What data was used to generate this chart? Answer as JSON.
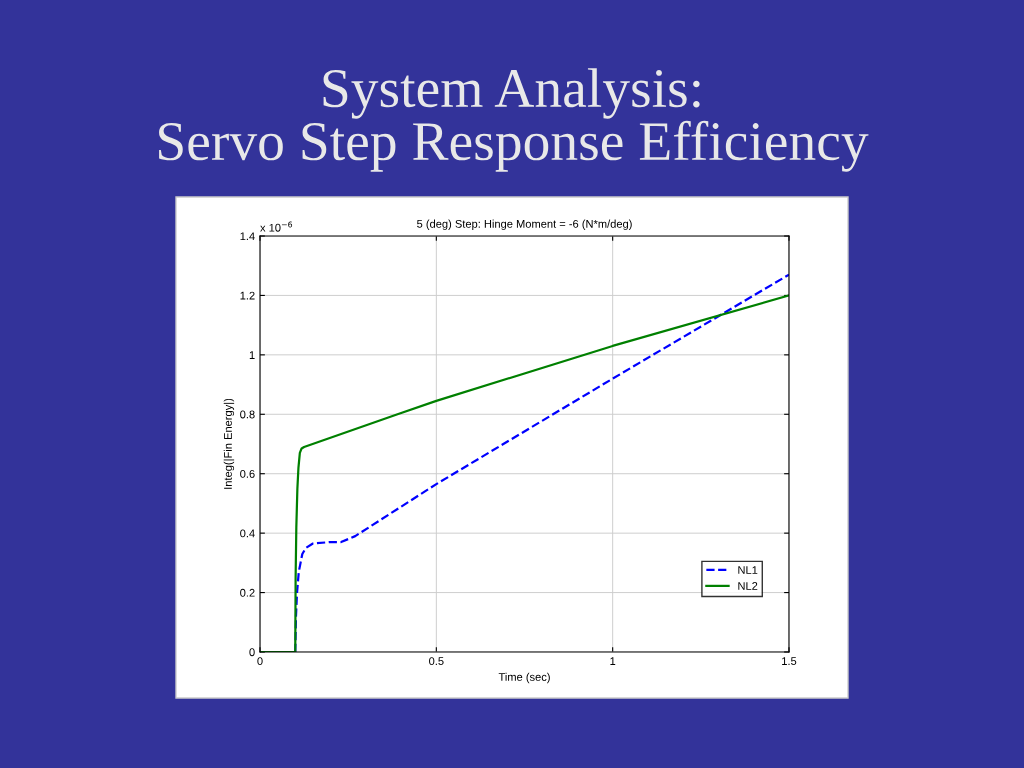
{
  "chart_data": {
    "type": "line",
    "title": "System Analysis:\nServo Step Response Efficiency",
    "subtitle": "5 (deg) Step: Hinge Moment = -6 (N*m/deg)",
    "xlabel": "Time (sec)",
    "ylabel": "Integ(|Fin Energy|)",
    "annotations": [
      "x 10$^{−6}$"
    ],
    "series": [
      {
        "name": "NL1",
        "color": "#0000ff",
        "line_style": "dashed",
        "x": [
          0,
          0.1,
          0.102,
          0.105,
          0.11,
          0.115,
          0.12,
          0.13,
          0.15,
          0.2,
          0.23,
          0.27,
          0.5,
          1.0,
          1.5
        ],
        "values": [
          0,
          0,
          0.12,
          0.2,
          0.27,
          0.3,
          0.33,
          0.35,
          0.365,
          0.37,
          0.37,
          0.39,
          0.565,
          0.92,
          1.27
        ]
      },
      {
        "name": "NL2",
        "color": "#008000",
        "line_style": "solid",
        "x": [
          0,
          0.1,
          0.101,
          0.103,
          0.106,
          0.109,
          0.113,
          0.118,
          0.125,
          0.39,
          0.5,
          1.0,
          1.5
        ],
        "values": [
          0,
          0,
          0.25,
          0.42,
          0.55,
          0.62,
          0.67,
          0.685,
          0.69,
          0.8,
          0.845,
          1.03,
          1.2
        ]
      }
    ],
    "xlim": [
      0,
      1.5
    ],
    "xticks": [
      0,
      0.5,
      1,
      1.5
    ],
    "ylim": [
      0,
      1.4
    ],
    "yticks": [
      0,
      0.2,
      0.4,
      0.6,
      0.8,
      1,
      1.2,
      1.4
    ],
    "grid": true,
    "legend": "bottom right"
  }
}
